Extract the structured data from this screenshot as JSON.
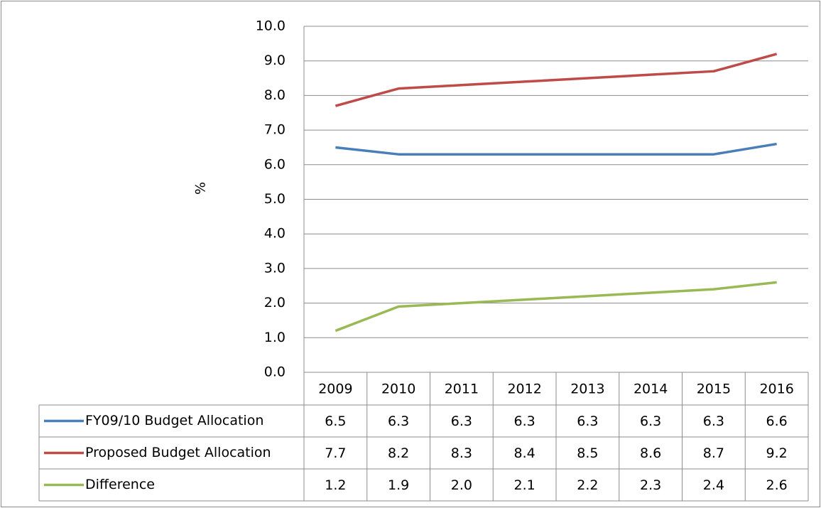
{
  "chart_data": {
    "type": "line",
    "ylabel": "%",
    "categories": [
      "2009",
      "2010",
      "2011",
      "2012",
      "2013",
      "2014",
      "2015",
      "2016"
    ],
    "series": [
      {
        "name": "FY09/10 Budget Allocation",
        "color": "#4a7ebb",
        "values": [
          6.5,
          6.3,
          6.3,
          6.3,
          6.3,
          6.3,
          6.3,
          6.6
        ],
        "value_labels": [
          "6.5",
          "6.3",
          "6.3",
          "6.3",
          "6.3",
          "6.3",
          "6.3",
          "6.6"
        ]
      },
      {
        "name": "Proposed Budget Allocation",
        "color": "#be4b48",
        "values": [
          7.7,
          8.2,
          8.3,
          8.4,
          8.5,
          8.6,
          8.7,
          9.2
        ],
        "value_labels": [
          "7.7",
          "8.2",
          "8.3",
          "8.4",
          "8.5",
          "8.6",
          "8.7",
          "9.2"
        ]
      },
      {
        "name": "Difference",
        "color": "#98b954",
        "values": [
          1.2,
          1.9,
          2.0,
          2.1,
          2.2,
          2.3,
          2.4,
          2.6
        ],
        "value_labels": [
          "1.2",
          "1.9",
          "2.0",
          "2.1",
          "2.2",
          "2.3",
          "2.4",
          "2.6"
        ]
      }
    ],
    "ylim": [
      0,
      10
    ],
    "yticks": [
      {
        "value": 0,
        "label": "0.0"
      },
      {
        "value": 1,
        "label": "1.0"
      },
      {
        "value": 2,
        "label": "2.0"
      },
      {
        "value": 3,
        "label": "3.0"
      },
      {
        "value": 4,
        "label": "4.0"
      },
      {
        "value": 5,
        "label": "5.0"
      },
      {
        "value": 6,
        "label": "6.0"
      },
      {
        "value": 7,
        "label": "7.0"
      },
      {
        "value": 8,
        "label": "8.0"
      },
      {
        "value": 9,
        "label": "9.0"
      },
      {
        "value": 10,
        "label": "10.0"
      }
    ],
    "grid": true
  }
}
